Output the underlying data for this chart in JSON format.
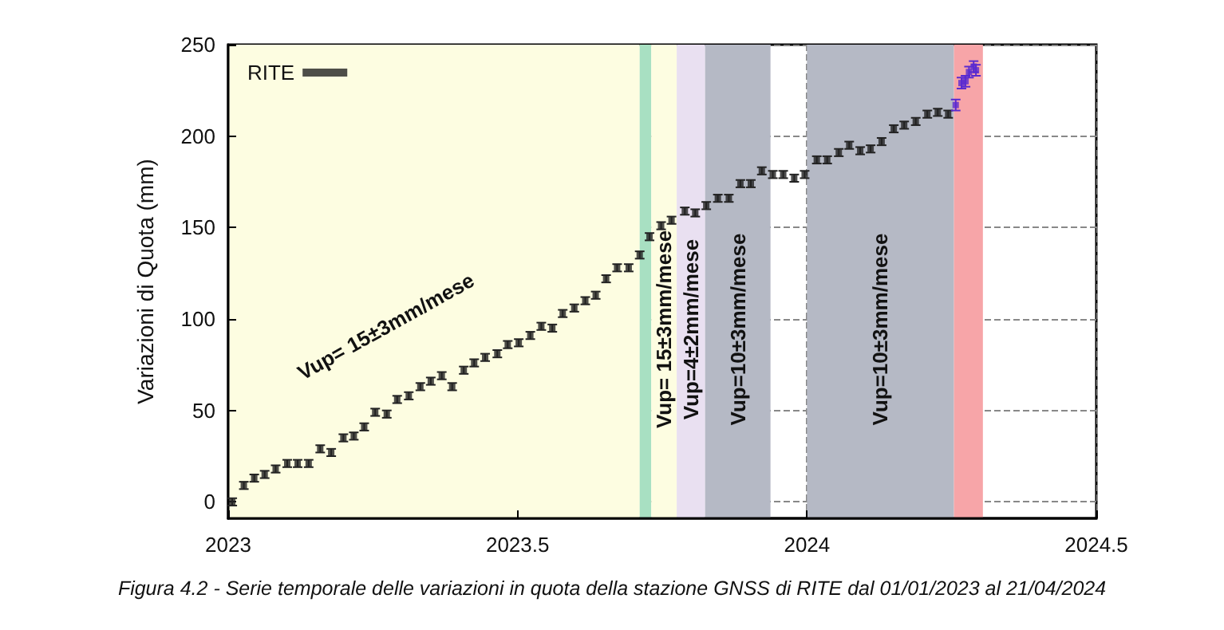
{
  "chart_data": {
    "type": "scatter",
    "ylabel": "Variazioni di Quota (mm)",
    "xlim": [
      2023,
      2024.5
    ],
    "xticks": [
      2023,
      2023.5,
      2024,
      2024.5
    ],
    "ylim": [
      -9,
      250
    ],
    "yticks": [
      0,
      50,
      100,
      150,
      200,
      250
    ],
    "grid": true,
    "legend": "top left",
    "marker": "square",
    "series": [
      {
        "name": "RITE",
        "color": "#222222",
        "x": [
          2023.007,
          2023.027,
          2023.045,
          2023.063,
          2023.082,
          2023.102,
          2023.12,
          2023.139,
          2023.159,
          2023.178,
          2023.199,
          2023.217,
          2023.235,
          2023.254,
          2023.274,
          2023.292,
          2023.312,
          2023.332,
          2023.35,
          2023.369,
          2023.387,
          2023.407,
          2023.425,
          2023.444,
          2023.465,
          2023.483,
          2023.502,
          2023.522,
          2023.541,
          2023.56,
          2023.578,
          2023.598,
          2023.617,
          2023.635,
          2023.653,
          2023.672,
          2023.692,
          2023.711,
          2023.728,
          2023.748,
          2023.766,
          2023.789,
          2023.807,
          2023.826,
          2023.846,
          2023.865,
          2023.885,
          2023.903,
          2023.922,
          2023.941,
          2023.959,
          2023.978,
          2023.996,
          2024.017,
          2024.035,
          2024.055,
          2024.073,
          2024.092,
          2024.11,
          2024.129,
          2024.15,
          2024.168,
          2024.188,
          2024.208,
          2024.226,
          2024.244
        ],
        "values": [
          0,
          9,
          13,
          15,
          18,
          21,
          21,
          21,
          29,
          27,
          35,
          36,
          41,
          49,
          48,
          56,
          58,
          63,
          66,
          69,
          63,
          72,
          76,
          79,
          81,
          86,
          87,
          91,
          96,
          95,
          103,
          106,
          110,
          113,
          122,
          128,
          128,
          135,
          145,
          151,
          154,
          159,
          158,
          162,
          166,
          166,
          174,
          174,
          181,
          179,
          179,
          177,
          179,
          187,
          187,
          191,
          195,
          192,
          193,
          197,
          204,
          206,
          208,
          212,
          213,
          212
        ],
        "errors": [
          2,
          2,
          2,
          2,
          2,
          2,
          2,
          2,
          2,
          2,
          2,
          2,
          2,
          2,
          2,
          2,
          2,
          2,
          2,
          2,
          2,
          2,
          2,
          2,
          2,
          2,
          2,
          2,
          2,
          2,
          2,
          2,
          2,
          2,
          2,
          2,
          2,
          2,
          2,
          2,
          2,
          2,
          2,
          2,
          2,
          2,
          2,
          2,
          2,
          2,
          2,
          2,
          2,
          2,
          2,
          2,
          2,
          2,
          2,
          2,
          2,
          2,
          2,
          2,
          2,
          2
        ]
      },
      {
        "color": "#5a2ad0",
        "x": [
          2024.257,
          2024.267,
          2024.274,
          2024.28,
          2024.288,
          2024.292
        ],
        "values": [
          217,
          229,
          230,
          235,
          238,
          236
        ],
        "errors": [
          3,
          3,
          3,
          3,
          3,
          3
        ]
      }
    ],
    "bands": [
      {
        "axis": "x",
        "from": 2023,
        "to": 2023.711,
        "label": "Vup= 15±3mm/mese",
        "color": "#fdfde1"
      },
      {
        "axis": "x",
        "from": 2023.711,
        "to": 2023.731,
        "color": "#a8e0c2"
      },
      {
        "axis": "x",
        "from": 2023.731,
        "to": 2023.775,
        "label": "Vup= 15±3mm/mese",
        "color": "#fdfde1"
      },
      {
        "axis": "x",
        "from": 2023.775,
        "to": 2023.824,
        "label": "Vup=4±2mm/mese",
        "color": "#e9e0f1"
      },
      {
        "axis": "x",
        "from": 2023.824,
        "to": 2023.937,
        "label": "Vup=10±3mm/mese",
        "color": "#b5b9c5"
      },
      {
        "axis": "x",
        "from": 2024.0,
        "to": 2024.254,
        "label": "Vup=10±3mm/mese",
        "color": "#b5b9c5"
      },
      {
        "axis": "x",
        "from": 2024.254,
        "to": 2024.304,
        "color": "#f7a5a8"
      }
    ],
    "annotations": [
      "Figura 4.2 - Serie temporale delle variazioni in quota della stazione GNSS di RITE dal 01/01/2023 al 21/04/2024"
    ]
  }
}
